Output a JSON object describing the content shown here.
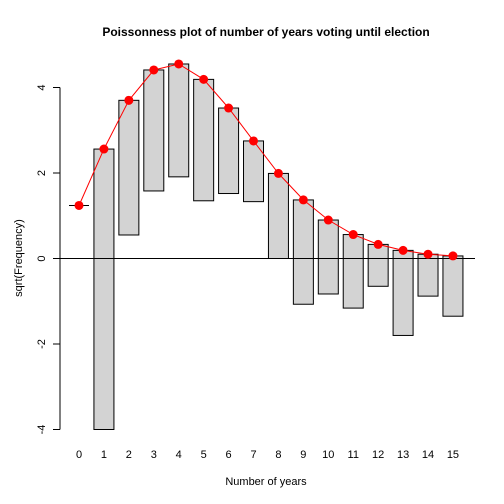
{
  "chart_data": {
    "type": "bar",
    "title": "Poissonness plot of number of years voting until election",
    "xlabel": "Number of years",
    "ylabel": "sqrt(Frequency)",
    "x": [
      0,
      1,
      2,
      3,
      4,
      5,
      6,
      7,
      8,
      9,
      10,
      11,
      12,
      13,
      14,
      15
    ],
    "hanging_bars": {
      "top": [
        1.24,
        2.56,
        3.7,
        4.41,
        4.55,
        4.19,
        3.52,
        2.75,
        1.99,
        1.37,
        0.9,
        0.56,
        0.33,
        0.19,
        0.1,
        0.06
      ],
      "bottom": [
        1.24,
        -4.0,
        0.55,
        1.58,
        1.91,
        1.35,
        1.52,
        1.33,
        0.0,
        -1.07,
        -0.83,
        -1.16,
        -0.65,
        -1.8,
        -0.88,
        -1.35
      ]
    },
    "fitted_curve": {
      "values": [
        1.24,
        2.56,
        3.7,
        4.41,
        4.55,
        4.19,
        3.52,
        2.75,
        1.99,
        1.37,
        0.9,
        0.56,
        0.33,
        0.19,
        0.1,
        0.06
      ],
      "color": "#ff0000"
    },
    "bar_fill": "#d3d3d3",
    "reference_line_y": 0,
    "ylim": [
      -4,
      4
    ],
    "yticks": [
      -4,
      -2,
      0,
      2,
      4
    ],
    "xticks": [
      "0",
      "1",
      "2",
      "3",
      "4",
      "5",
      "6",
      "7",
      "8",
      "9",
      "10",
      "11",
      "12",
      "13",
      "14",
      "15"
    ],
    "grid": false,
    "legend": "none"
  }
}
